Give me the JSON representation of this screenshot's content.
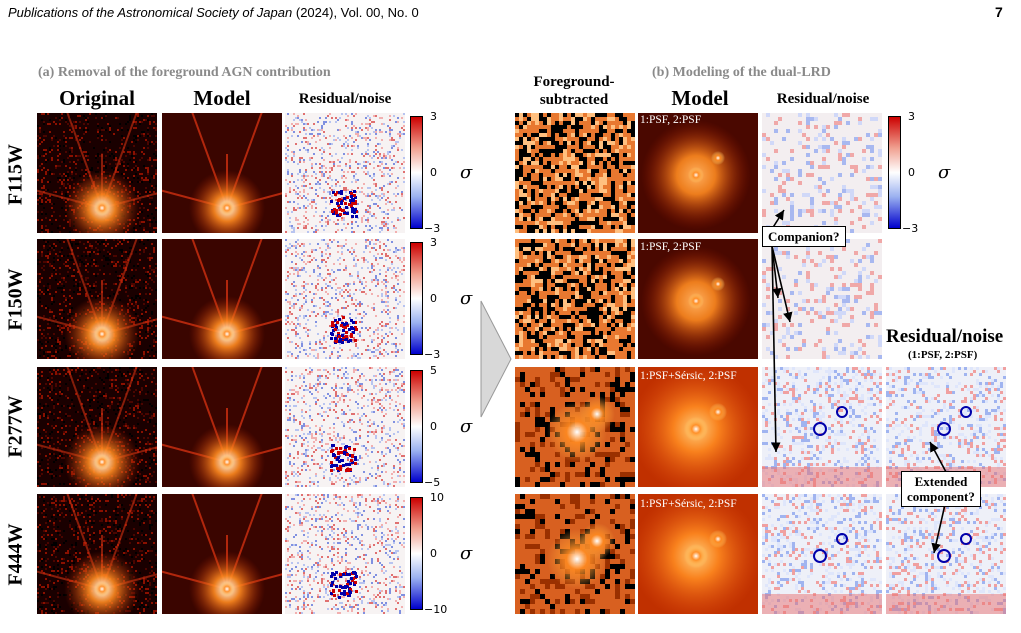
{
  "header": {
    "journal": "Publications of the Astronomical Society of Japan",
    "details": "(2024), Vol. 00, No. 0",
    "page_number": "7"
  },
  "panel_a": {
    "title": "(a) Removal of the foreground AGN contribution",
    "columns": [
      "Original",
      "Model",
      "Residual/noise"
    ]
  },
  "panel_b": {
    "title": "(b) Modeling of the dual-LRD",
    "col_foreground_line1": "Foreground-",
    "col_foreground_line2": "subtracted",
    "col_model": "Model",
    "col_residual": "Residual/noise",
    "extra_residual_title": "Residual/noise",
    "extra_residual_sub": "(1:PSF, 2:PSF)"
  },
  "bands": [
    "F115W",
    "F150W",
    "F277W",
    "F444W"
  ],
  "model_tags": [
    "1:PSF, 2:PSF",
    "1:PSF, 2:PSF",
    "1:PSF+Sérsic, 2:PSF",
    "1:PSF+Sérsic, 2:PSF"
  ],
  "colorbars_a": [
    {
      "top": "3",
      "mid": "0",
      "bottom": "−3"
    },
    {
      "top": "3",
      "mid": "0",
      "bottom": "−3"
    },
    {
      "top": "5",
      "mid": "0",
      "bottom": "−5"
    },
    {
      "top": "10",
      "mid": "0",
      "bottom": "−10"
    }
  ],
  "colorbar_b": {
    "top": "3",
    "mid": "0",
    "bottom": "−3"
  },
  "colorbar_label": "σ",
  "callouts": {
    "companion": "Companion?",
    "extended_line1": "Extended",
    "extended_line2": "component?"
  },
  "colors": {
    "hot_dark": "#180000",
    "hot_mid": "#b82000",
    "hot_bright": "#ffffff",
    "resid_red": "#cc0000",
    "resid_blue": "#0000cc",
    "section_gray": "#8a8a8a"
  }
}
